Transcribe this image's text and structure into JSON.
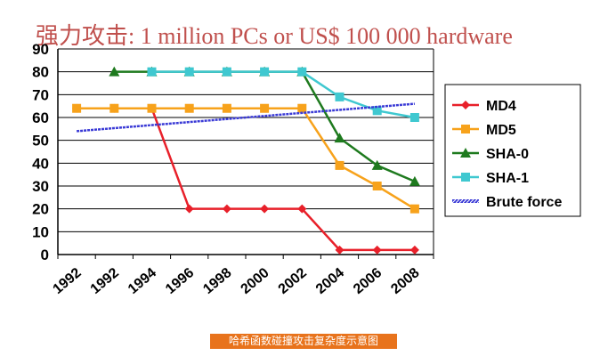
{
  "title": "强力攻击: 1 million PCs or US$ 100 000 hardware",
  "caption": "哈希函数碰撞攻击复杂度示意图",
  "chart_data": {
    "type": "line",
    "x_tick_labels": [
      "1992",
      "1992",
      "1994",
      "1996",
      "1998",
      "2000",
      "2002",
      "2004",
      "2006",
      "2008"
    ],
    "ylim": [
      0,
      90
    ],
    "y_ticks": [
      0,
      10,
      20,
      30,
      40,
      50,
      60,
      70,
      80,
      90
    ],
    "grid": "horizontal",
    "legend_position": "right",
    "series": [
      {
        "name": "MD4",
        "color": "#e8202a",
        "marker": "diamond",
        "x": [
          1991,
          1993,
          1995,
          1997,
          1999,
          2001,
          2003,
          2005,
          2007,
          2009
        ],
        "y": [
          64,
          64,
          64,
          20,
          20,
          20,
          20,
          2,
          2,
          2
        ]
      },
      {
        "name": "MD5",
        "color": "#f7a21b",
        "marker": "square",
        "x": [
          1991,
          1993,
          1995,
          1997,
          1999,
          2001,
          2003,
          2005,
          2007,
          2009
        ],
        "y": [
          64,
          64,
          64,
          64,
          64,
          64,
          64,
          39,
          30,
          20
        ]
      },
      {
        "name": "SHA-0",
        "color": "#1e7a1e",
        "marker": "triangle",
        "x": [
          1993,
          1995,
          1997,
          1999,
          2001,
          2003,
          2005,
          2007,
          2009
        ],
        "y": [
          80,
          80,
          80,
          80,
          80,
          80,
          51,
          39,
          32
        ]
      },
      {
        "name": "SHA-1",
        "color": "#3fc8d0",
        "marker": "square",
        "x": [
          1995,
          1997,
          1999,
          2001,
          2003,
          2005,
          2007,
          2009
        ],
        "y": [
          80,
          80,
          80,
          80,
          80,
          69,
          63,
          60
        ]
      },
      {
        "name": "Brute force",
        "color": "#3a3ad6",
        "marker": "none",
        "x": [
          1991,
          2009
        ],
        "y": [
          54,
          66
        ]
      }
    ]
  }
}
